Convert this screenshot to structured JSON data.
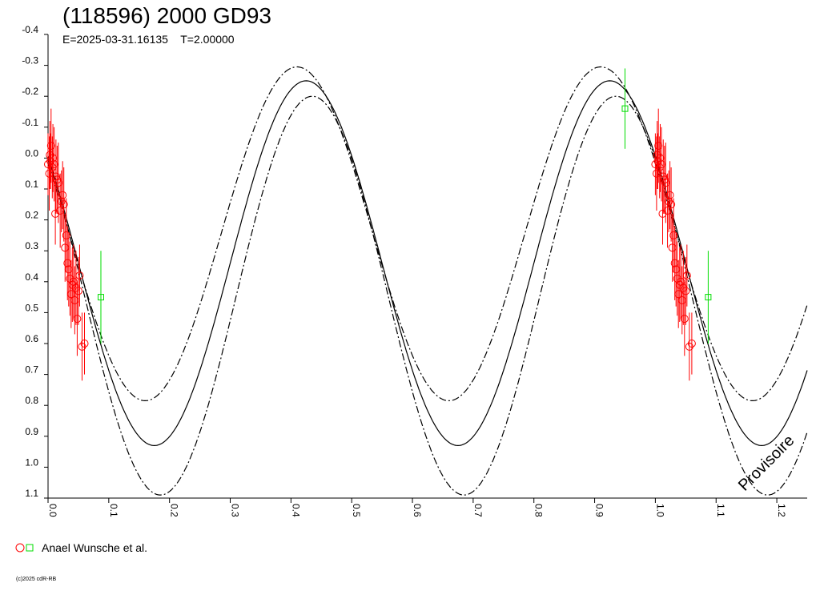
{
  "chart_data": {
    "type": "scatter",
    "title": "(118596) 2000 GD93",
    "subtitle": "E=2025-03-31.16135    T=2.00000",
    "xlim": [
      0.0,
      1.25
    ],
    "ylim": [
      -0.4,
      1.1
    ],
    "y_inverted": true,
    "x_ticks": [
      "0.0",
      "0.1",
      "0.2",
      "0.3",
      "0.4",
      "0.5",
      "0.6",
      "0.7",
      "0.8",
      "0.9",
      "1.0",
      "1.1",
      "1.2"
    ],
    "y_ticks": [
      "-0.4",
      "-0.3",
      "-0.2",
      "-0.1",
      "0.0",
      "0.1",
      "0.2",
      "0.3",
      "0.4",
      "0.5",
      "0.6",
      "0.7",
      "0.8",
      "0.9",
      "1.0",
      "1.1"
    ],
    "grid": false,
    "model": {
      "period_fraction": 0.5,
      "center": {
        "mid": 0.34,
        "amplitude": 0.59,
        "phase_of_max": 0.425
      },
      "upper": {
        "mid": 0.245,
        "amplitude": 0.54,
        "phase_of_max": 0.41
      },
      "lower": {
        "mid": 0.445,
        "amplitude": 0.645,
        "phase_of_max": 0.435
      }
    },
    "series": [
      {
        "name": "Anael Wunsche et al.",
        "marker": "circle",
        "color": "#ff0000",
        "points": [
          {
            "x": 0.0,
            "y": 0.02,
            "err": 0.1
          },
          {
            "x": 0.002,
            "y": 0.05,
            "err": 0.12
          },
          {
            "x": 0.003,
            "y": -0.01,
            "err": 0.11
          },
          {
            "x": 0.004,
            "y": 0.01,
            "err": 0.09
          },
          {
            "x": 0.005,
            "y": -0.04,
            "err": 0.12
          },
          {
            "x": 0.007,
            "y": 0.03,
            "err": 0.1
          },
          {
            "x": 0.008,
            "y": 0.0,
            "err": 0.11
          },
          {
            "x": 0.01,
            "y": 0.02,
            "err": 0.12
          },
          {
            "x": 0.012,
            "y": 0.18,
            "err": 0.1
          },
          {
            "x": 0.013,
            "y": 0.06,
            "err": 0.12
          },
          {
            "x": 0.015,
            "y": 0.07,
            "err": 0.11
          },
          {
            "x": 0.017,
            "y": 0.08,
            "err": 0.13
          },
          {
            "x": 0.02,
            "y": 0.17,
            "err": 0.12
          },
          {
            "x": 0.022,
            "y": 0.14,
            "err": 0.1
          },
          {
            "x": 0.024,
            "y": 0.12,
            "err": 0.11
          },
          {
            "x": 0.026,
            "y": 0.15,
            "err": 0.12
          },
          {
            "x": 0.028,
            "y": 0.29,
            "err": 0.11
          },
          {
            "x": 0.03,
            "y": 0.25,
            "err": 0.12
          },
          {
            "x": 0.032,
            "y": 0.34,
            "err": 0.12
          },
          {
            "x": 0.034,
            "y": 0.36,
            "err": 0.12
          },
          {
            "x": 0.036,
            "y": 0.39,
            "err": 0.12
          },
          {
            "x": 0.038,
            "y": 0.44,
            "err": 0.11
          },
          {
            "x": 0.04,
            "y": 0.41,
            "err": 0.12
          },
          {
            "x": 0.042,
            "y": 0.4,
            "err": 0.12
          },
          {
            "x": 0.044,
            "y": 0.46,
            "err": 0.11
          },
          {
            "x": 0.046,
            "y": 0.42,
            "err": 0.12
          },
          {
            "x": 0.048,
            "y": 0.52,
            "err": 0.12
          },
          {
            "x": 0.05,
            "y": 0.43,
            "err": 0.11
          },
          {
            "x": 0.052,
            "y": 0.38,
            "err": 0.1
          },
          {
            "x": 0.056,
            "y": 0.61,
            "err": 0.11
          },
          {
            "x": 0.06,
            "y": 0.6,
            "err": 0.1
          }
        ]
      },
      {
        "name": "Anael Wunsche et al.",
        "marker": "square",
        "color": "#00dd00",
        "points": [
          {
            "x": 0.087,
            "y": 0.45,
            "err": 0.15
          },
          {
            "x": 0.95,
            "y": -0.16,
            "err": 0.13
          }
        ]
      }
    ],
    "legend": {
      "label": "Anael Wunsche et al.",
      "placement": "bottom-left"
    },
    "watermark": "Provisoire",
    "copyright": "(c)2025 cdR-RB"
  }
}
